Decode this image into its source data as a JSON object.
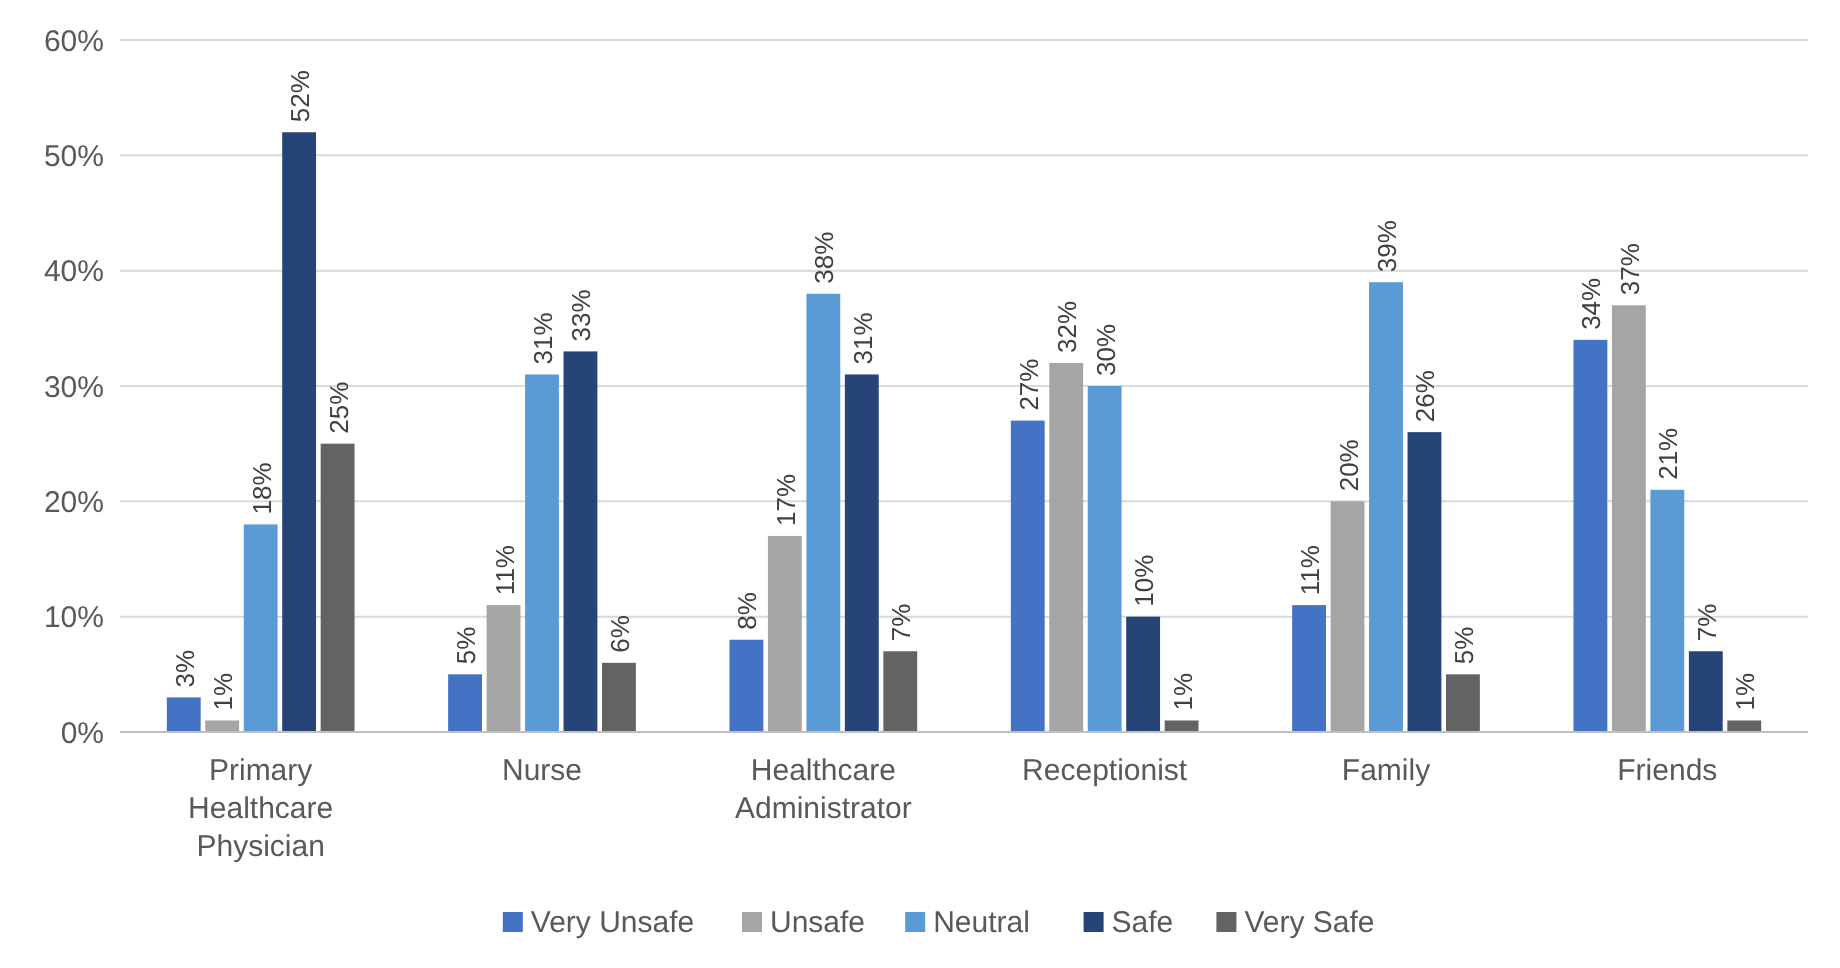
{
  "chart_data": {
    "type": "bar",
    "categories": [
      "Primary Healthcare Physician",
      "Nurse",
      "Healthcare Administrator",
      "Receptionist",
      "Family",
      "Friends"
    ],
    "series": [
      {
        "name": "Very Unsafe",
        "color": "#4472c4",
        "values": [
          3,
          5,
          8,
          27,
          11,
          34
        ],
        "value_labels": [
          "3%",
          "5%",
          "8%",
          "27%",
          "11%",
          "34%"
        ]
      },
      {
        "name": "Unsafe",
        "color": "#a5a5a5",
        "values": [
          1,
          11,
          17,
          32,
          20,
          37
        ],
        "value_labels": [
          "1%",
          "11%",
          "17%",
          "32%",
          "20%",
          "37%"
        ]
      },
      {
        "name": "Neutral",
        "color": "#5b9bd5",
        "values": [
          18,
          31,
          38,
          30,
          39,
          21
        ],
        "value_labels": [
          "18%",
          "31%",
          "38%",
          "30%",
          "39%",
          "21%"
        ]
      },
      {
        "name": "Safe",
        "color": "#264478",
        "values": [
          52,
          33,
          31,
          10,
          26,
          7
        ],
        "value_labels": [
          "52%",
          "33%",
          "31%",
          "10%",
          "26%",
          "7%"
        ]
      },
      {
        "name": "Very Safe",
        "color": "#636363",
        "values": [
          25,
          6,
          7,
          1,
          5,
          1
        ],
        "value_labels": [
          "25%",
          "6%",
          "7%",
          "1%",
          "5%",
          "1%"
        ]
      }
    ],
    "ylim": [
      0,
      60
    ],
    "yticks": [
      {
        "value": 0,
        "label": "0%"
      },
      {
        "value": 10,
        "label": "10%"
      },
      {
        "value": 20,
        "label": "20%"
      },
      {
        "value": 30,
        "label": "30%"
      },
      {
        "value": 40,
        "label": "40%"
      },
      {
        "value": 50,
        "label": "50%"
      },
      {
        "value": 60,
        "label": "60%"
      }
    ],
    "grid": "y",
    "legend": "bottom"
  }
}
